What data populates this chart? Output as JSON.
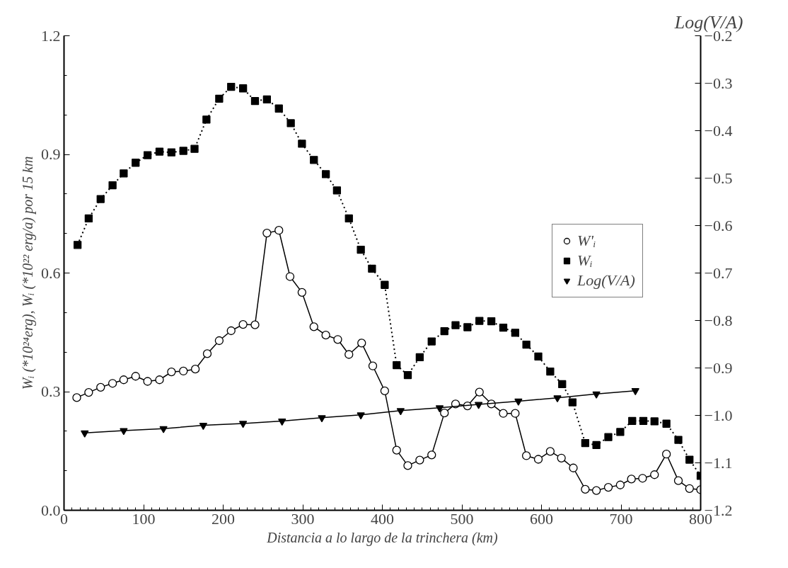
{
  "chart_data": {
    "type": "line",
    "xlabel": "Distancia a lo largo de la trinchera (km)",
    "ylabel": "Wᵢ (*10²⁴erg), Wᵢ (*10²² erg/a) por 15 km",
    "y2label": "Log(V/A)",
    "xlim": [
      0,
      800
    ],
    "xticks": [
      0,
      100,
      200,
      300,
      400,
      500,
      600,
      700,
      800
    ],
    "ylim": [
      0,
      1.2
    ],
    "yticks": [
      {
        "value": 0,
        "label": "0.0"
      },
      0.3,
      0.6,
      0.9,
      1.2
    ],
    "y2lim": [
      -1.2,
      -0.2
    ],
    "y2ticks": [
      {
        "value": -1.2,
        "label": "−1.2"
      },
      {
        "value": -1.1,
        "label": "−1.1"
      },
      {
        "value": -1.0,
        "label": "−1.0"
      },
      {
        "value": -0.9,
        "label": "−0.9"
      },
      {
        "value": -0.8,
        "label": "−0.8"
      },
      {
        "value": -0.7,
        "label": "−0.7"
      },
      {
        "value": -0.6,
        "label": "−0.6"
      },
      {
        "value": -0.5,
        "label": "−0.5"
      },
      {
        "value": -0.4,
        "label": "−0.4"
      },
      {
        "value": -0.3,
        "label": "−0.3"
      },
      {
        "value": -0.2,
        "label": "−0.2"
      }
    ],
    "grid": false,
    "legend": "right",
    "series": [
      {
        "name": "W'ᵢ",
        "color": "#000000",
        "marker": "circle",
        "line_style": "solid",
        "x": [
          16,
          31,
          46,
          61,
          75,
          90,
          105,
          120,
          135,
          150,
          165,
          180,
          195,
          210,
          225,
          240,
          255,
          270,
          284,
          299,
          314,
          329,
          344,
          358,
          374,
          388,
          403,
          418,
          432,
          447,
          462,
          478,
          492,
          507,
          522,
          537,
          552,
          567,
          581,
          596,
          611,
          625,
          640,
          655,
          669,
          684,
          699,
          713,
          727,
          742,
          757,
          772,
          786,
          800
        ],
        "values": [
          0.285,
          0.298,
          0.311,
          0.321,
          0.33,
          0.339,
          0.326,
          0.33,
          0.35,
          0.352,
          0.357,
          0.396,
          0.429,
          0.454,
          0.47,
          0.469,
          0.701,
          0.708,
          0.591,
          0.551,
          0.464,
          0.443,
          0.432,
          0.394,
          0.423,
          0.365,
          0.302,
          0.152,
          0.113,
          0.127,
          0.14,
          0.246,
          0.269,
          0.264,
          0.299,
          0.269,
          0.245,
          0.245,
          0.138,
          0.129,
          0.149,
          0.132,
          0.107,
          0.053,
          0.05,
          0.058,
          0.064,
          0.079,
          0.081,
          0.09,
          0.142,
          0.075,
          0.055,
          0.052
        ]
      },
      {
        "name": "Wᵢ",
        "color": "#000000",
        "marker": "square",
        "line_style": "dotted",
        "x": [
          17,
          31,
          46,
          61,
          75,
          90,
          105,
          120,
          135,
          150,
          164,
          179,
          195,
          210,
          225,
          240,
          255,
          270,
          285,
          299,
          314,
          329,
          343,
          358,
          373,
          387,
          403,
          418,
          432,
          447,
          462,
          478,
          492,
          507,
          522,
          537,
          552,
          567,
          581,
          596,
          611,
          626,
          639,
          655,
          669,
          684,
          699,
          714,
          728,
          742,
          757,
          772,
          786,
          800
        ],
        "values": [
          0.671,
          0.738,
          0.787,
          0.822,
          0.852,
          0.879,
          0.898,
          0.907,
          0.905,
          0.909,
          0.914,
          0.988,
          1.041,
          1.071,
          1.067,
          1.035,
          1.039,
          1.016,
          0.979,
          0.927,
          0.886,
          0.85,
          0.809,
          0.738,
          0.659,
          0.611,
          0.57,
          0.367,
          0.342,
          0.387,
          0.427,
          0.453,
          0.468,
          0.463,
          0.479,
          0.478,
          0.462,
          0.449,
          0.419,
          0.389,
          0.351,
          0.319,
          0.273,
          0.17,
          0.165,
          0.185,
          0.198,
          0.226,
          0.226,
          0.225,
          0.219,
          0.178,
          0.128,
          0.087
        ]
      },
      {
        "name": "Log(V/A)",
        "color": "#000000",
        "marker": "triangle",
        "line_style": "solid",
        "axis": "y2",
        "x": [
          26,
          75,
          125,
          175,
          225,
          274,
          324,
          373,
          423,
          472,
          521,
          571,
          620,
          669,
          718
        ],
        "values": [
          -1.037,
          -1.032,
          -1.028,
          -1.021,
          -1.017,
          -1.012,
          -1.005,
          -0.999,
          -0.99,
          -0.984,
          -0.977,
          -0.97,
          -0.963,
          -0.955,
          -0.948
        ]
      }
    ]
  }
}
